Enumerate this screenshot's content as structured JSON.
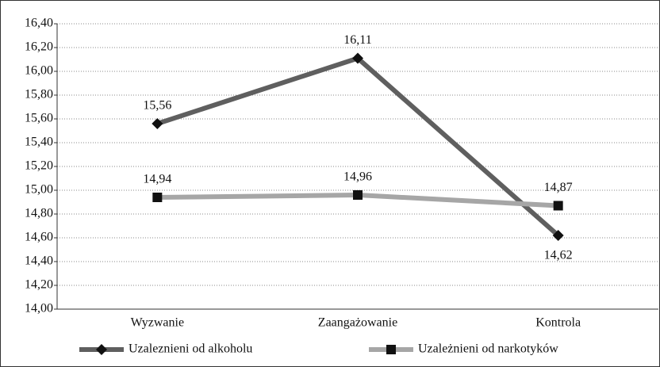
{
  "chart_data": {
    "type": "line",
    "categories": [
      "Wyzwanie",
      "Zaangażowanie",
      "Kontrola"
    ],
    "series": [
      {
        "name": "Uzaleznieni od alkoholu",
        "color": "#5f5f5f",
        "marker": "diamond",
        "values": [
          15.56,
          16.11,
          14.62
        ],
        "value_labels": [
          "15,56",
          "16,11",
          "14,62"
        ]
      },
      {
        "name": "Uzależnieni od narkotyków",
        "color": "#a6a6a6",
        "marker": "square",
        "values": [
          14.94,
          14.96,
          14.87
        ],
        "value_labels": [
          "14,94",
          "14,96",
          "14,87"
        ]
      }
    ],
    "ylim": [
      14.0,
      16.4
    ],
    "yticks": [
      {
        "value": 14.0,
        "label": "14,00"
      },
      {
        "value": 14.2,
        "label": "14,20"
      },
      {
        "value": 14.4,
        "label": "14,40"
      },
      {
        "value": 14.6,
        "label": "14,60"
      },
      {
        "value": 14.8,
        "label": "14,80"
      },
      {
        "value": 15.0,
        "label": "15,00"
      },
      {
        "value": 15.2,
        "label": "15,20"
      },
      {
        "value": 15.4,
        "label": "15,40"
      },
      {
        "value": 15.6,
        "label": "15,60"
      },
      {
        "value": 15.8,
        "label": "15,80"
      },
      {
        "value": 16.0,
        "label": "16,00"
      },
      {
        "value": 16.2,
        "label": "16,20"
      },
      {
        "value": 16.4,
        "label": "16,40"
      }
    ],
    "grid": true,
    "legend": "bottom"
  }
}
